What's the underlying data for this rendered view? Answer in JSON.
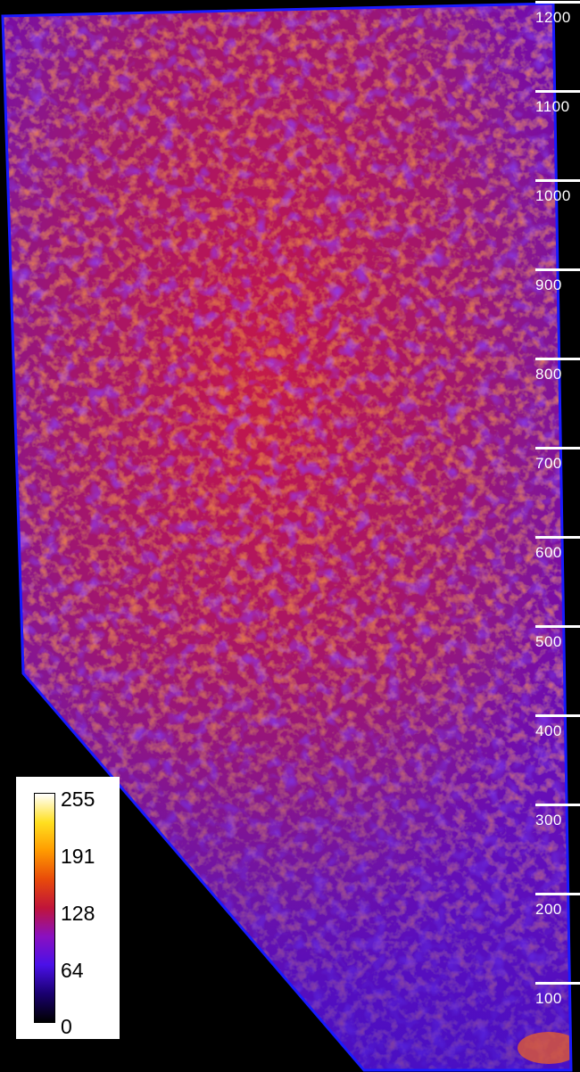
{
  "image": {
    "subject": "heatmap-intensity-map",
    "outline_color": "#1a1aff",
    "background_color": "#000000"
  },
  "depth_scale": {
    "labels": [
      "1200",
      "1100",
      "1000",
      "900",
      "800",
      "700",
      "600",
      "500",
      "400",
      "300",
      "200",
      "100"
    ]
  },
  "colorbar": {
    "labels": [
      "255",
      "191",
      "128",
      "64",
      "0"
    ],
    "colormap": [
      "#000000",
      "#1a0070",
      "#4a10e8",
      "#8a10c0",
      "#c0143a",
      "#e84a0a",
      "#ff9a00",
      "#ffe020",
      "#ffffff"
    ]
  }
}
